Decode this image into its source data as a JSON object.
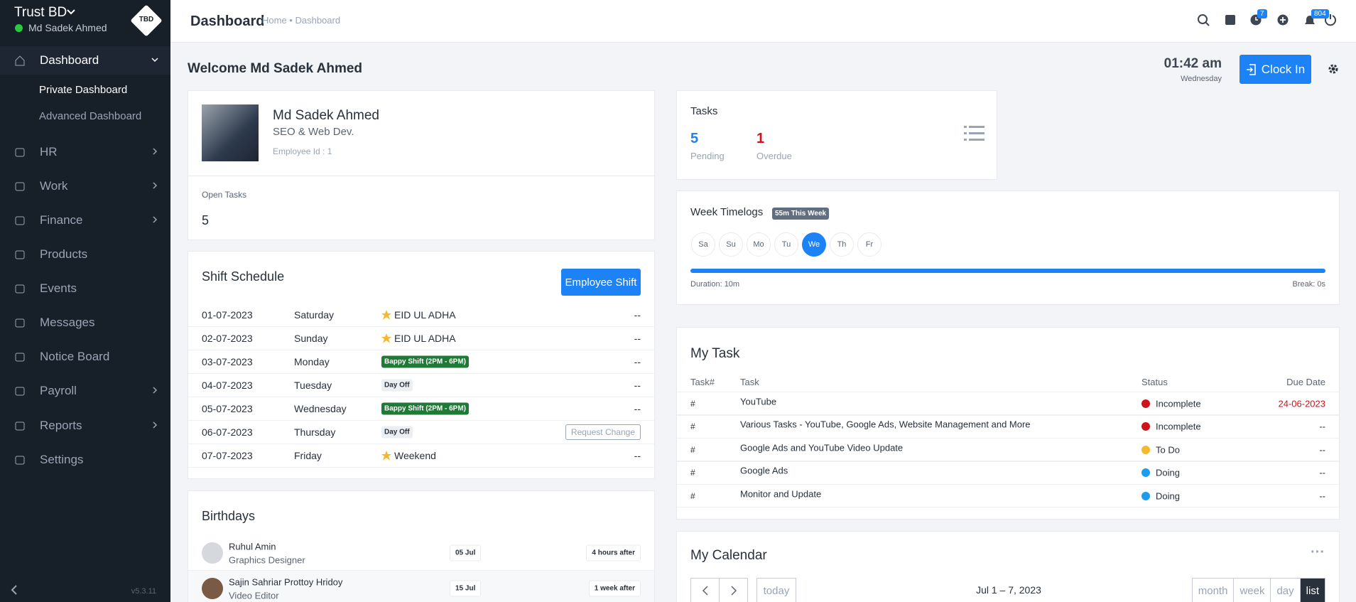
{
  "sidebar": {
    "company": "Trust BD",
    "user": "Md Sadek Ahmed",
    "logo": "TBD",
    "menu": [
      "Dashboard",
      "HR",
      "Work",
      "Finance",
      "Products",
      "Events",
      "Messages",
      "Notice Board",
      "Payroll",
      "Reports",
      "Settings"
    ],
    "submenu": [
      "Private Dashboard",
      "Advanced Dashboard"
    ],
    "version": "v5.3.11"
  },
  "header": {
    "title": "Dashboard",
    "breadcrumb": [
      "Home",
      "Dashboard"
    ],
    "clock_badge": "7",
    "notification_badge": "804"
  },
  "welcome": {
    "text": "Welcome Md Sadek Ahmed",
    "time": "01:42 am",
    "day": "Wednesday",
    "clock_in": "Clock In"
  },
  "profile": {
    "name": "Md Sadek Ahmed",
    "designation": "SEO & Web Dev.",
    "employee_id": "Employee Id : 1",
    "open_tasks_label": "Open Tasks",
    "open_tasks": 5
  },
  "tasks": {
    "title": "Tasks",
    "pending": 5,
    "pending_label": "Pending",
    "overdue": 1,
    "overdue_label": "Overdue"
  },
  "timelogs": {
    "title": "Week Timelogs",
    "badge": "55m This Week",
    "days": [
      "Sa",
      "Su",
      "Mo",
      "Tu",
      "We",
      "Th",
      "Fr"
    ],
    "active_day": 4,
    "duration": "Duration: 10m",
    "break": "Break: 0s"
  },
  "shift": {
    "title": "Shift Schedule",
    "button": "Employee Shift",
    "rows": [
      {
        "date": "01-07-2023",
        "day": "Saturday",
        "event": "EID UL ADHA",
        "style": "holiday",
        "action": "--"
      },
      {
        "date": "02-07-2023",
        "day": "Sunday",
        "event": "EID UL ADHA",
        "style": "holiday",
        "action": "--"
      },
      {
        "date": "03-07-2023",
        "day": "Monday",
        "event": "Bappy Shift (2PM - 6PM)",
        "style": "shift",
        "action": "--"
      },
      {
        "date": "04-07-2023",
        "day": "Tuesday",
        "event": "Day Off",
        "style": "off",
        "action": "--"
      },
      {
        "date": "05-07-2023",
        "day": "Wednesday",
        "event": "Bappy Shift (2PM - 6PM)",
        "style": "shift",
        "action": "--"
      },
      {
        "date": "06-07-2023",
        "day": "Thursday",
        "event": "Day Off",
        "style": "off",
        "action_button": "Request Change"
      },
      {
        "date": "07-07-2023",
        "day": "Friday",
        "event": "Weekend",
        "style": "holiday",
        "action": "--"
      }
    ]
  },
  "my_task": {
    "title": "My Task",
    "columns": [
      "Task#",
      "Task",
      "Status",
      "Due Date"
    ],
    "rows": [
      {
        "num": "#",
        "task": "YouTube",
        "status": "Incomplete",
        "status_color": "#d0121b",
        "due": "24-06-2023",
        "due_color": "#d0121b"
      },
      {
        "num": "#",
        "task": "Various Tasks - YouTube, Google Ads, Website Management and More",
        "status": "Incomplete",
        "status_color": "#d0121b",
        "due": "--"
      },
      {
        "num": "#",
        "task": "Google Ads and YouTube Video Update",
        "status": "To Do",
        "status_color": "#f5b82e",
        "due": "--"
      },
      {
        "num": "#",
        "task": "Google Ads",
        "status": "Doing",
        "status_color": "#1d9bf0",
        "due": "--"
      },
      {
        "num": "#",
        "task": "Monitor and Update",
        "status": "Doing",
        "status_color": "#1d9bf0",
        "due": "--"
      }
    ]
  },
  "birthdays": {
    "title": "Birthdays",
    "rows": [
      {
        "name": "Ruhul Amin",
        "role": "Graphics Designer",
        "date": "05 Jul",
        "when": "4 hours after"
      },
      {
        "name": "Sajin Sahriar Prottoy Hridoy",
        "role": "Video Editor",
        "date": "15 Jul",
        "when": "1 week after"
      }
    ]
  },
  "calendar": {
    "title": "My Calendar",
    "today": "today",
    "range": "Jul 1 – 7, 2023",
    "views": [
      "month",
      "week",
      "day",
      "list"
    ],
    "active_view": 3
  }
}
